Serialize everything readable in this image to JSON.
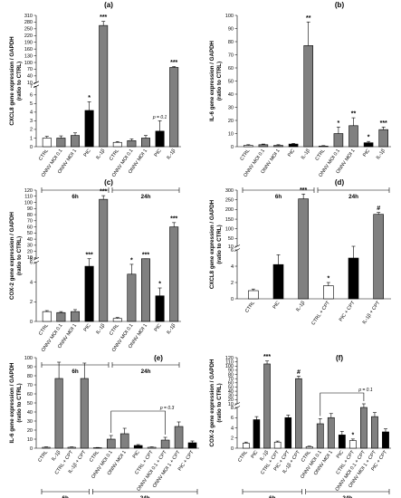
{
  "chart_data": [
    {
      "type": "bar",
      "panel_label": "(a)",
      "ylabel": "CXCL8 gene expression / GAPDH\n(ratio to CTRL)",
      "axis_break": true,
      "lower_ticks": [
        0,
        1,
        2,
        3,
        4,
        5,
        6,
        7
      ],
      "upper_ticks": [
        10,
        40,
        70,
        100,
        130,
        160,
        190,
        220,
        250,
        280,
        310
      ],
      "groups": [
        {
          "label": "6h",
          "bars": [
            {
              "category": "CTRL",
              "value": 1.0,
              "error": 0.2,
              "fill": "white",
              "annotation": ""
            },
            {
              "category": "ONNV MOI 0.1",
              "value": 1.0,
              "error": 0.25,
              "fill": "gray",
              "annotation": ""
            },
            {
              "category": "ONNV MOI 1",
              "value": 1.3,
              "error": 0.3,
              "fill": "gray",
              "annotation": ""
            },
            {
              "category": "PIC",
              "value": 4.2,
              "error": 1.0,
              "fill": "black",
              "annotation": "*"
            },
            {
              "category": "IL-1β",
              "value": 265,
              "error": 18,
              "fill": "gray",
              "annotation": "***"
            }
          ]
        },
        {
          "label": "24h",
          "bars": [
            {
              "category": "CTRL",
              "value": 0.5,
              "error": 0.1,
              "fill": "white",
              "annotation": ""
            },
            {
              "category": "ONNV MOI 0.1",
              "value": 0.7,
              "error": 0.2,
              "fill": "gray",
              "annotation": ""
            },
            {
              "category": "ONNV MOI 1",
              "value": 1.0,
              "error": 0.3,
              "fill": "gray",
              "annotation": ""
            },
            {
              "category": "PIC",
              "value": 1.8,
              "error": 1.2,
              "fill": "black",
              "annotation": "p = 0.1"
            },
            {
              "category": "IL-1β",
              "value": 78,
              "error": 4,
              "fill": "gray",
              "annotation": "***"
            }
          ]
        }
      ]
    },
    {
      "type": "bar",
      "panel_label": "(b)",
      "ylabel": "IL-6 gene expression / GAPDH\n(ratio to CTRL)",
      "axis_break": false,
      "ylim": [
        0,
        100
      ],
      "ticks": [
        0,
        10,
        20,
        30,
        40,
        50,
        60,
        70,
        80,
        90,
        100
      ],
      "groups": [
        {
          "label": "6h",
          "bars": [
            {
              "category": "CTRL",
              "value": 1.0,
              "error": 0.5,
              "fill": "white",
              "annotation": ""
            },
            {
              "category": "ONNV MOI 0.1",
              "value": 1.5,
              "error": 0.5,
              "fill": "gray",
              "annotation": ""
            },
            {
              "category": "ONNV MOI 1",
              "value": 1.0,
              "error": 0.5,
              "fill": "gray",
              "annotation": ""
            },
            {
              "category": "PIC",
              "value": 2.0,
              "error": 0.5,
              "fill": "black",
              "annotation": ""
            },
            {
              "category": "IL-1β",
              "value": 77,
              "error": 18,
              "fill": "gray",
              "annotation": "**"
            }
          ]
        },
        {
          "label": "24h",
          "bars": [
            {
              "category": "CTRL",
              "value": 0.5,
              "error": 0.3,
              "fill": "white",
              "annotation": ""
            },
            {
              "category": "ONNV MOI 0.1",
              "value": 10,
              "error": 5,
              "fill": "gray",
              "annotation": "*"
            },
            {
              "category": "ONNV MOI 1",
              "value": 16,
              "error": 6,
              "fill": "gray",
              "annotation": "**"
            },
            {
              "category": "PIC",
              "value": 3,
              "error": 1,
              "fill": "black",
              "annotation": "*"
            },
            {
              "category": "IL-1β",
              "value": 13,
              "error": 2,
              "fill": "gray",
              "annotation": "***"
            }
          ]
        }
      ]
    },
    {
      "type": "bar",
      "panel_label": "(c)",
      "ylabel": "COX-2 gene expression / GAPDH\n(ratio to CTRL)",
      "axis_break": true,
      "lower_ticks": [
        0,
        2,
        4,
        6
      ],
      "upper_ticks": [
        8,
        10,
        20,
        30,
        40,
        50,
        60,
        70,
        80,
        90,
        100,
        110,
        120
      ],
      "groups": [
        {
          "label": "6h",
          "bars": [
            {
              "category": "CTRL",
              "value": 1.0,
              "error": 0.1,
              "fill": "white",
              "annotation": ""
            },
            {
              "category": "ONNV MOI 0.1",
              "value": 0.9,
              "error": 0.1,
              "fill": "gray",
              "annotation": ""
            },
            {
              "category": "ONNV MOI 1",
              "value": 1.0,
              "error": 0.2,
              "fill": "gray",
              "annotation": ""
            },
            {
              "category": "PIC",
              "value": 5.6,
              "error": 0.6,
              "fill": "black",
              "annotation": "***"
            },
            {
              "category": "IL-1β",
              "value": 105,
              "error": 6,
              "fill": "gray",
              "annotation": "***"
            }
          ]
        },
        {
          "label": "24h",
          "bars": [
            {
              "category": "CTRL",
              "value": 0.3,
              "error": 0.1,
              "fill": "white",
              "annotation": ""
            },
            {
              "category": "ONNV MOI 0.1",
              "value": 4.8,
              "error": 1.0,
              "fill": "gray",
              "annotation": "*"
            },
            {
              "category": "ONNV MOI 1",
              "value": 6.2,
              "error": 1.0,
              "fill": "gray",
              "annotation": "***"
            },
            {
              "category": "PIC",
              "value": 2.6,
              "error": 0.8,
              "fill": "black",
              "annotation": "*"
            },
            {
              "category": "IL-1β",
              "value": 60,
              "error": 7,
              "fill": "gray",
              "annotation": "***"
            }
          ]
        }
      ]
    },
    {
      "type": "bar",
      "panel_label": "(d)",
      "ylabel": "CXCL8 gene expression / GAPDH\n(ratio to CTRL)",
      "axis_break": true,
      "lower_ticks": [
        0,
        2,
        4,
        6
      ],
      "upper_ticks": [
        10,
        50,
        100,
        150,
        200,
        250,
        300
      ],
      "groups": [
        {
          "label": "",
          "bars": [
            {
              "category": "CTRL",
              "value": 1.0,
              "error": 0.2,
              "fill": "white",
              "annotation": ""
            },
            {
              "category": "PIC",
              "value": 4.2,
              "error": 1.2,
              "fill": "black",
              "annotation": ""
            },
            {
              "category": "IL-1β",
              "value": 255,
              "error": 25,
              "fill": "gray",
              "annotation": "***"
            },
            {
              "category": "CTRL + CPT",
              "value": 1.6,
              "error": 0.4,
              "fill": "white",
              "annotation": "*"
            },
            {
              "category": "PIC + CPT",
              "value": 5.0,
              "error": 1.5,
              "fill": "black",
              "annotation": ""
            },
            {
              "category": "IL-1β + CPT",
              "value": 175,
              "error": 10,
              "fill": "gray",
              "annotation": "#"
            }
          ]
        }
      ]
    },
    {
      "type": "bar",
      "panel_label": "(e)",
      "ylabel": "IL-6 gene expression / GAPDH\n(ratio to CTRL)",
      "axis_break": false,
      "ylim": [
        0,
        100
      ],
      "ticks": [
        0,
        10,
        20,
        30,
        40,
        50,
        60,
        70,
        80,
        90,
        100
      ],
      "bracket_annotation": "p = 0.3",
      "groups": [
        {
          "label": "6h",
          "bars": [
            {
              "category": "CTRL",
              "value": 1,
              "error": 0.5,
              "fill": "white",
              "annotation": ""
            },
            {
              "category": "IL-1β",
              "value": 77,
              "error": 18,
              "fill": "gray",
              "annotation": ""
            },
            {
              "category": "CTRL + CPT",
              "value": 1,
              "error": 0.5,
              "fill": "white",
              "annotation": ""
            },
            {
              "category": "IL-1β + CPT",
              "value": 77,
              "error": 17,
              "fill": "gray",
              "annotation": ""
            }
          ]
        },
        {
          "label": "24h",
          "bars": [
            {
              "category": "CTRL",
              "value": 0.5,
              "error": 0.3,
              "fill": "white",
              "annotation": ""
            },
            {
              "category": "ONNV MOI 0.1",
              "value": 10,
              "error": 4,
              "fill": "gray",
              "annotation": ""
            },
            {
              "category": "ONNV MOI 1",
              "value": 16,
              "error": 6,
              "fill": "gray",
              "annotation": ""
            },
            {
              "category": "PIC",
              "value": 3,
              "error": 1,
              "fill": "black",
              "annotation": ""
            },
            {
              "category": "CTRL + CPT",
              "value": 1,
              "error": 0.5,
              "fill": "white",
              "annotation": ""
            },
            {
              "category": "ONNV MOI 0.1 + CPT",
              "value": 9,
              "error": 3,
              "fill": "gray",
              "annotation": ""
            },
            {
              "category": "ONNV MOI 1 + CPT",
              "value": 24,
              "error": 5,
              "fill": "gray",
              "annotation": ""
            },
            {
              "category": "PIC + CPT",
              "value": 6,
              "error": 2,
              "fill": "black",
              "annotation": ""
            }
          ]
        }
      ]
    },
    {
      "type": "bar",
      "panel_label": "(f)",
      "ylabel": "COX-2 gene expression / GAPDH\n(ratio to CTRL)",
      "axis_break": true,
      "lower_ticks": [
        0,
        2,
        4,
        6,
        8
      ],
      "upper_ticks": [
        10,
        20,
        30,
        40,
        50,
        60,
        70,
        80,
        90,
        100,
        110,
        120
      ],
      "bracket_annotation": "p = 0.1",
      "groups": [
        {
          "label": "6h",
          "bars": [
            {
              "category": "CTRL",
              "value": 1,
              "error": 0.2,
              "fill": "white",
              "annotation": ""
            },
            {
              "category": "PIC",
              "value": 5.6,
              "error": 0.6,
              "fill": "black",
              "annotation": ""
            },
            {
              "category": "IL-1β",
              "value": 105,
              "error": 7,
              "fill": "gray",
              "annotation": "***"
            },
            {
              "category": "CTRL + CPT",
              "value": 1.2,
              "error": 0.2,
              "fill": "white",
              "annotation": ""
            },
            {
              "category": "PIC + CPT",
              "value": 6,
              "error": 0.5,
              "fill": "black",
              "annotation": ""
            },
            {
              "category": "IL-1β + CPT",
              "value": 70,
              "error": 6,
              "fill": "gray",
              "annotation": "#"
            }
          ]
        },
        {
          "label": "24h",
          "bars": [
            {
              "category": "CTRL",
              "value": 0.3,
              "error": 0.1,
              "fill": "white",
              "annotation": ""
            },
            {
              "category": "ONNV MOI 0.1",
              "value": 4.8,
              "error": 1,
              "fill": "gray",
              "annotation": ""
            },
            {
              "category": "ONNV MOI 1",
              "value": 6.0,
              "error": 0.8,
              "fill": "gray",
              "annotation": ""
            },
            {
              "category": "PIC",
              "value": 2.6,
              "error": 0.7,
              "fill": "black",
              "annotation": ""
            },
            {
              "category": "CTRL + CPT",
              "value": 1.5,
              "error": 0.3,
              "fill": "white",
              "annotation": "*"
            },
            {
              "category": "ONNV MOI 0.1 + CPT",
              "value": 8,
              "error": 1.2,
              "fill": "gray",
              "annotation": ""
            },
            {
              "category": "ONNV MOI 1 + CPT",
              "value": 6.2,
              "error": 0.8,
              "fill": "gray",
              "annotation": ""
            },
            {
              "category": "PIC + CPT",
              "value": 3.2,
              "error": 0.6,
              "fill": "black",
              "annotation": ""
            }
          ]
        }
      ]
    }
  ]
}
